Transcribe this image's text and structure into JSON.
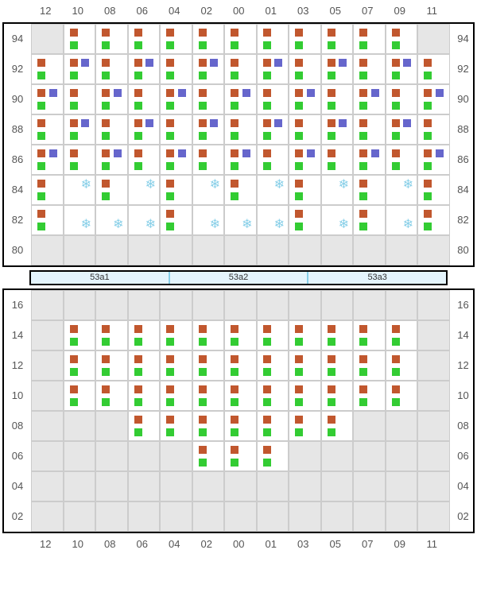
{
  "colors": {
    "red": "#c1572e",
    "green": "#33cc33",
    "purple": "#6666cc",
    "snow": "#87cfe8"
  },
  "pdus": [
    "53a1",
    "53a2",
    "53a3"
  ],
  "columns": [
    "12",
    "10",
    "08",
    "06",
    "04",
    "02",
    "00",
    "01",
    "03",
    "05",
    "07",
    "09",
    "11"
  ],
  "topRack": {
    "rows": [
      "94",
      "92",
      "90",
      "88",
      "86",
      "84",
      "82",
      "80"
    ],
    "cells": {
      "94": [
        null,
        "rg",
        "rg",
        "rg",
        "rg",
        "rg",
        "rg",
        "rg",
        "rg",
        "rg",
        "rg",
        "rg",
        null
      ],
      "92": [
        "rg",
        "rgp",
        "rg",
        "rgp",
        "rg",
        "rgp",
        "rg",
        "rgp",
        "rg",
        "rgp",
        "rg",
        "rgp",
        "rg"
      ],
      "90": [
        "rgp",
        "rg",
        "rgp",
        "rg",
        "rgp",
        "rg",
        "rgp",
        "rg",
        "rgp",
        "rg",
        "rgp",
        "rg",
        "rgp"
      ],
      "88": [
        "rg",
        "rgp",
        "rg",
        "rgp",
        "rg",
        "rgp",
        "rg",
        "rgp",
        "rg",
        "rgp",
        "rg",
        "rgp",
        "rg"
      ],
      "86": [
        "rgp",
        "rg",
        "rgp",
        "rg",
        "rgp",
        "rg",
        "rgp",
        "rg",
        "rgp",
        "rg",
        "rgp",
        "rg",
        "rgp"
      ],
      "84": [
        "rg",
        "sn1",
        "rg",
        "sn1",
        "rg",
        "sn1",
        "rg",
        "sn1",
        "rg",
        "sn1",
        "rg",
        "sn1",
        "rg"
      ],
      "82": [
        "rg",
        "sn2",
        "sn2",
        "sn2",
        "rg",
        "sn2",
        "sn2",
        "sn2",
        "rg",
        "sn2",
        "rg",
        "sn2",
        "rg"
      ],
      "80": [
        null,
        null,
        null,
        null,
        null,
        null,
        null,
        null,
        null,
        null,
        null,
        null,
        null
      ]
    }
  },
  "bottomRack": {
    "rows": [
      "16",
      "14",
      "12",
      "10",
      "08",
      "06",
      "04",
      "02"
    ],
    "cells": {
      "16": [
        null,
        null,
        null,
        null,
        null,
        null,
        null,
        null,
        null,
        null,
        null,
        null,
        null
      ],
      "14": [
        null,
        "rg",
        "rg",
        "rg",
        "rg",
        "rg",
        "rg",
        "rg",
        "rg",
        "rg",
        "rg",
        "rg",
        null
      ],
      "12": [
        null,
        "rg",
        "rg",
        "rg",
        "rg",
        "rg",
        "rg",
        "rg",
        "rg",
        "rg",
        "rg",
        "rg",
        null
      ],
      "10": [
        null,
        "rg",
        "rg",
        "rg",
        "rg",
        "rg",
        "rg",
        "rg",
        "rg",
        "rg",
        "rg",
        "rg",
        null
      ],
      "08": [
        null,
        null,
        null,
        "rg",
        "rg",
        "rg",
        "rg",
        "rg",
        "rg",
        "rg",
        null,
        null,
        null
      ],
      "06": [
        null,
        null,
        null,
        null,
        null,
        "rg",
        "rg",
        "rg",
        null,
        null,
        null,
        null,
        null
      ],
      "04": [
        null,
        null,
        null,
        null,
        null,
        null,
        null,
        null,
        null,
        null,
        null,
        null,
        null
      ],
      "02": [
        null,
        null,
        null,
        null,
        null,
        null,
        null,
        null,
        null,
        null,
        null,
        null,
        null
      ]
    }
  }
}
